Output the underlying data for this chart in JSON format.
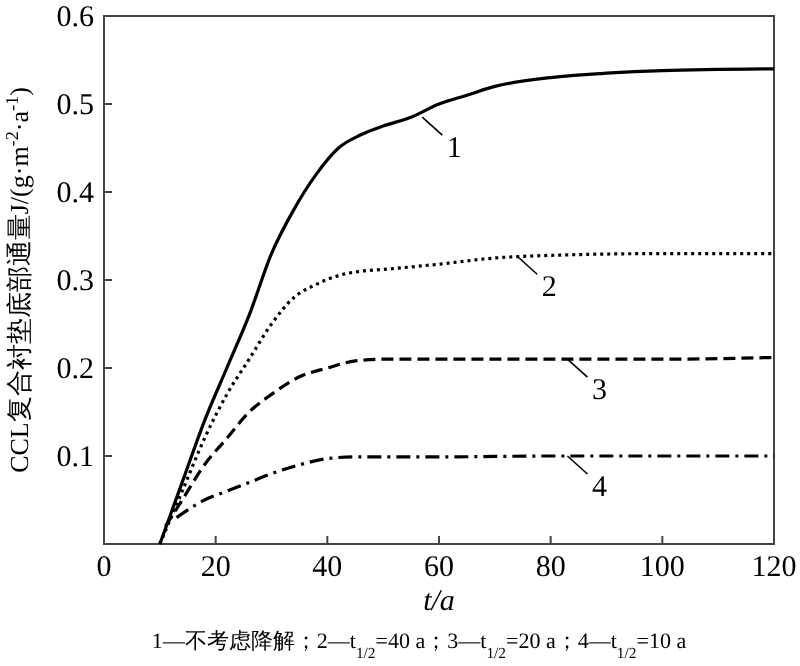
{
  "chart_data": {
    "type": "line",
    "xlabel": "t/a",
    "ylabel": "CCL复合衬垫底部通量J/(g·m$^{-2}$·a$^{-1}$)",
    "xlim": [
      0,
      120
    ],
    "ylim": [
      0,
      0.6
    ],
    "xticks": [
      0,
      20,
      40,
      60,
      80,
      100,
      120
    ],
    "yticks": [
      0.1,
      0.2,
      0.3,
      0.4,
      0.5,
      0.6
    ],
    "grid": false,
    "marker": "none",
    "series": [
      {
        "color": "#000000",
        "line_style": "solid",
        "x": [
          10,
          14,
          18,
          22,
          26,
          30,
          34,
          38,
          42,
          46,
          50,
          55,
          60,
          65,
          70,
          80,
          90,
          100,
          120
        ],
        "values": [
          0,
          0.07,
          0.14,
          0.2,
          0.26,
          0.33,
          0.38,
          0.42,
          0.45,
          0.465,
          0.475,
          0.485,
          0.5,
          0.51,
          0.52,
          0.53,
          0.535,
          0.538,
          0.54
        ]
      },
      {
        "color": "#000000",
        "line_style": "dotted",
        "x": [
          10,
          14,
          18,
          22,
          26,
          30,
          34,
          38,
          42,
          46,
          50,
          60,
          70,
          80,
          100,
          120
        ],
        "values": [
          0,
          0.06,
          0.12,
          0.17,
          0.21,
          0.25,
          0.28,
          0.295,
          0.305,
          0.31,
          0.312,
          0.318,
          0.325,
          0.328,
          0.33,
          0.33
        ]
      },
      {
        "color": "#000000",
        "line_style": "dashed",
        "x": [
          11,
          14,
          18,
          22,
          26,
          30,
          35,
          40,
          45,
          50,
          70,
          100,
          120
        ],
        "values": [
          0.02,
          0.05,
          0.09,
          0.12,
          0.15,
          0.17,
          0.19,
          0.2,
          0.208,
          0.21,
          0.21,
          0.21,
          0.212
        ]
      },
      {
        "color": "#000000",
        "line_style": "dashdot",
        "x": [
          13,
          18,
          22,
          26,
          30,
          35,
          40,
          45,
          60,
          80,
          120
        ],
        "values": [
          0.03,
          0.05,
          0.06,
          0.07,
          0.08,
          0.09,
          0.097,
          0.099,
          0.099,
          0.1,
          0.1
        ]
      }
    ],
    "annotations": [
      {
        "text": "1",
        "x": 57,
        "y": 0.485
      },
      {
        "text": "2",
        "x": 74,
        "y": 0.327
      },
      {
        "text": "3",
        "x": 83,
        "y": 0.21
      },
      {
        "text": "4",
        "x": 83,
        "y": 0.1
      },
      "1—不考虑降解；2—t$_{1/2}$=40 a；3—t$_{1/2}$=20 a；4—t$_{1/2}$=10 a"
    ]
  }
}
